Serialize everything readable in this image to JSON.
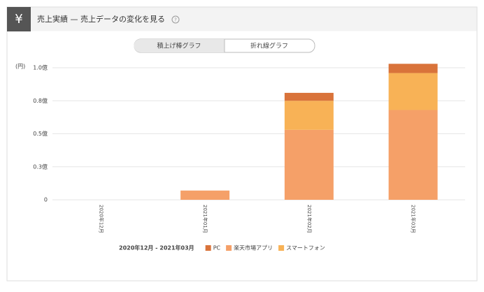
{
  "header": {
    "icon": "¥",
    "title": "売上実績 — 売上データの変化を見る",
    "help": "?"
  },
  "tabs": [
    "積上げ棒グラフ",
    "折れ線グラフ"
  ],
  "chart_data": {
    "type": "stacked_bar",
    "y_label": "(円)",
    "period": "2020年12月 - 2021年03月",
    "categories": [
      "2020年12月",
      "2021年01月",
      "2021年02月",
      "2021年03月"
    ],
    "series": [
      {
        "name": "PC",
        "color": "#d9733a",
        "values": [
          0,
          0,
          0.06,
          0.07
        ]
      },
      {
        "name": "楽天市場アプリ",
        "color": "#f5a068",
        "values": [
          0,
          0.07,
          0.53,
          0.68
        ]
      },
      {
        "name": "スマートフォン",
        "color": "#f8b256",
        "values": [
          0,
          0,
          0.22,
          0.28
        ]
      }
    ],
    "stack_order": [
      1,
      2,
      0
    ],
    "ylim": [
      0,
      1
    ],
    "yticks": [
      0,
      {
        "value": 0.25,
        "label": "0.3億"
      },
      {
        "value": 0.5,
        "label": "0.5億"
      },
      {
        "value": 0.75,
        "label": "0.8億"
      },
      {
        "value": 1,
        "label": "1.0億"
      }
    ],
    "grid": true
  }
}
